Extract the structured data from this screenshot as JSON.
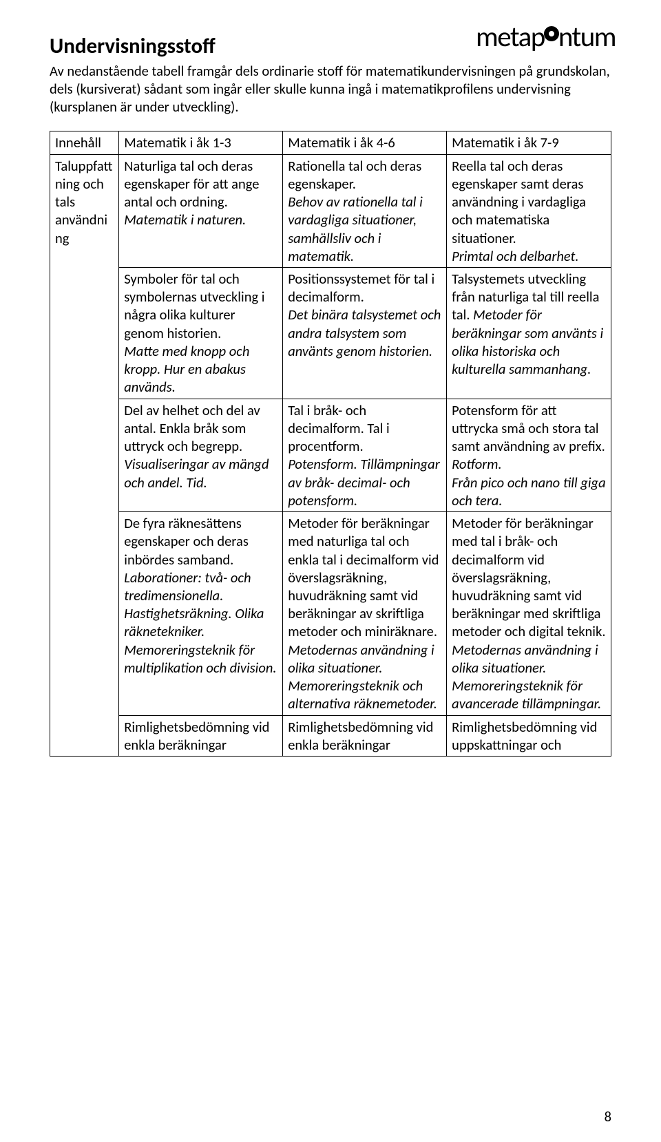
{
  "logo": {
    "left": "metap",
    "right": "ntum"
  },
  "heading": "Undervisningsstoff",
  "intro": "Av nedanstående tabell framgår dels ordinarie stoff för matematik­undervisningen på grundskolan, dels (kursiverat) sådant som ingår eller skulle kunna ingå i matematikprofilens undervisning (kursplanen är under utveckling).",
  "headers": {
    "col0": "Innehåll",
    "col1": "Matematik i åk 1-3",
    "col2": "Matematik i åk 4-6",
    "col3": "Matematik i åk 7-9"
  },
  "rowlabel": "Taluppfattning och tals användning",
  "r1": {
    "c1": {
      "plain": "Naturliga tal och deras egenskaper för att ange antal och ordning.",
      "em": "Matematik i naturen."
    },
    "c2": {
      "plain": "Rationella tal och deras egenskaper.",
      "em": "Behov av rationella tal i vardagliga situationer, samhällsliv och i matematik."
    },
    "c3": {
      "plain": "Reella tal och deras egenskaper samt deras användning i vardagliga och matematiska situationer.",
      "em": "Primtal och delbarhet."
    }
  },
  "r2": {
    "c1": {
      "plain": "Symboler för tal och symbolernas utveckling i några olika kulturer genom historien.",
      "em": "Matte med knopp och kropp. Hur en abakus används."
    },
    "c2": {
      "plain": "Positionssystemet för tal i decimalform.",
      "em": "Det binära talsystemet och andra talsystem som använts genom historien."
    },
    "c3": {
      "plain": "Talsystemets utveckling från naturliga tal till reella tal. ",
      "em": "Metoder för beräkningar som använts i olika historiska och kulturella sammanhang."
    }
  },
  "r3": {
    "c1": {
      "plain": "Del av helhet och del av antal. Enkla bråk som uttryck och begrepp.",
      "em": "Visualiseringar av mängd och andel. Tid."
    },
    "c2": {
      "plain": "Tal i bråk- och decimalform. Tal i procentform.",
      "em": "Potensform. Tillämpningar av bråk- decimal- och potensform."
    },
    "c3": {
      "plain": "Potensform för att uttrycka små och stora tal samt användning av prefix.",
      "em": "Rotform.",
      "em2": "Från pico och nano till giga och tera."
    }
  },
  "r4": {
    "c1": {
      "plain": "De fyra räknesättens egenskaper och deras inbördes samband.",
      "em": "Laborationer: två- och tredimensionella. Hastighetsräkning. Olika räknetekniker. Memoreringsteknik för multiplikation och division."
    },
    "c2": {
      "plain": "Metoder för beräkningar med naturliga tal och enkla tal i decimalform vid överslagsräkning, huvudräkning samt vid beräkningar av skriftliga metoder och miniräknare.",
      "em": "Metodernas användning i olika situationer. Memoreringsteknik och alternativa räknemetoder."
    },
    "c3": {
      "plain": "Metoder för beräkningar med tal i bråk- och decimalform vid överslagsräkning, huvudräkning samt vid beräkningar med skriftliga metoder och digital teknik.",
      "em": "Metodernas användning i olika situationer. Memoreringsteknik för avancerade tillämpningar."
    }
  },
  "r5": {
    "c1": {
      "plain": "Rimlighetsbedömning vid enkla beräkningar"
    },
    "c2": {
      "plain": "Rimlighetsbedömning vid enkla beräkningar"
    },
    "c3": {
      "plain": "Rimlighetsbedömning vid uppskattningar och"
    }
  },
  "pagenum": "8"
}
